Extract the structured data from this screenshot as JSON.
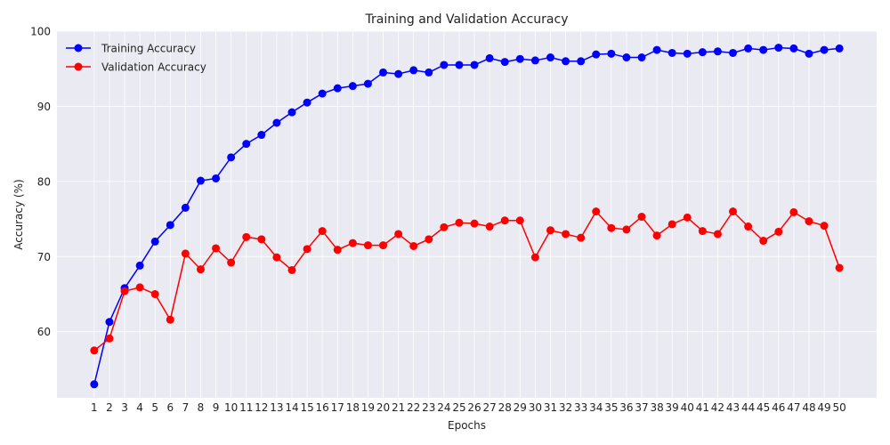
{
  "chart_data": {
    "type": "line",
    "title": "Training and Validation Accuracy",
    "xlabel": "Epochs",
    "ylabel": "Accuracy (%)",
    "x": [
      1,
      2,
      3,
      4,
      5,
      6,
      7,
      8,
      9,
      10,
      11,
      12,
      13,
      14,
      15,
      16,
      17,
      18,
      19,
      20,
      21,
      22,
      23,
      24,
      25,
      26,
      27,
      28,
      29,
      30,
      31,
      32,
      33,
      34,
      35,
      36,
      37,
      38,
      39,
      40,
      41,
      42,
      43,
      44,
      45,
      46,
      47,
      48,
      49,
      50
    ],
    "xlim": [
      -1.45,
      52.45
    ],
    "ylim": [
      51.2,
      100
    ],
    "yticks": [
      60,
      70,
      80,
      90,
      100
    ],
    "grid": true,
    "legend_position": "top-left",
    "series": [
      {
        "name": "Training Accuracy",
        "color": "#0000ff",
        "values": [
          53.0,
          61.3,
          65.8,
          68.8,
          72.0,
          74.2,
          76.5,
          80.1,
          80.4,
          83.2,
          85.0,
          86.2,
          87.8,
          89.2,
          90.5,
          91.7,
          92.4,
          92.7,
          93.0,
          94.5,
          94.3,
          94.8,
          94.5,
          95.5,
          95.5,
          95.5,
          96.4,
          95.9,
          96.3,
          96.1,
          96.5,
          96.0,
          96.0,
          96.9,
          97.0,
          96.5,
          96.5,
          97.5,
          97.1,
          97.0,
          97.2,
          97.3,
          97.1,
          97.7,
          97.5,
          97.8,
          97.7,
          97.0,
          97.5,
          97.7
        ]
      },
      {
        "name": "Validation Accuracy",
        "color": "#ff0000",
        "values": [
          57.5,
          59.1,
          65.4,
          65.9,
          65.0,
          61.6,
          70.4,
          68.3,
          71.1,
          69.2,
          72.6,
          72.3,
          69.9,
          68.2,
          71.0,
          73.4,
          70.9,
          71.8,
          71.5,
          71.5,
          73.0,
          71.4,
          72.3,
          73.9,
          74.5,
          74.4,
          74.0,
          74.8,
          74.8,
          69.9,
          73.5,
          73.0,
          72.5,
          76.0,
          73.8,
          73.6,
          75.3,
          72.8,
          74.3,
          75.2,
          73.4,
          73.0,
          76.0,
          74.0,
          72.1,
          73.3,
          75.9,
          74.7,
          74.1,
          68.5
        ]
      }
    ]
  }
}
